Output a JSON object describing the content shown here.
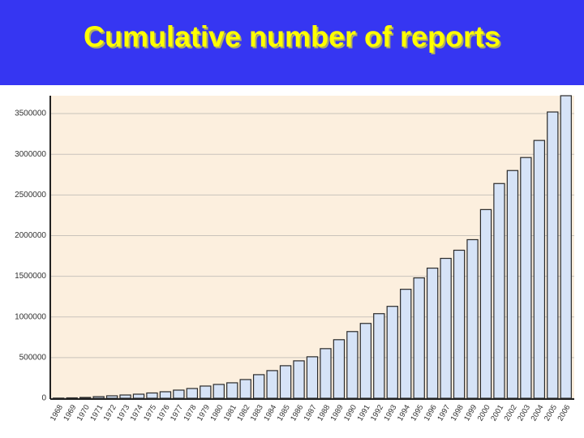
{
  "chart_data": {
    "type": "bar",
    "title": "Cumulative number of reports",
    "categories": [
      "1968",
      "1969",
      "1970",
      "1971",
      "1972",
      "1973",
      "1974",
      "1975",
      "1976",
      "1977",
      "1978",
      "1979",
      "1980",
      "1981",
      "1982",
      "1983",
      "1984",
      "1985",
      "1986",
      "1987",
      "1988",
      "1989",
      "1990",
      "1991",
      "1992",
      "1993",
      "1994",
      "1995",
      "1996",
      "1997",
      "1998",
      "1999",
      "2000",
      "2001",
      "2002",
      "2003",
      "2004",
      "2005",
      "2006"
    ],
    "values": [
      2000,
      5000,
      10000,
      20000,
      30000,
      40000,
      50000,
      65000,
      80000,
      100000,
      120000,
      150000,
      170000,
      190000,
      230000,
      290000,
      340000,
      400000,
      460000,
      510000,
      610000,
      720000,
      820000,
      920000,
      1040000,
      1130000,
      1340000,
      1480000,
      1600000,
      1720000,
      1820000,
      1950000,
      2320000,
      2640000,
      2800000,
      2960000,
      3170000,
      3520000,
      3720000
    ],
    "color": "#d6e3f7",
    "ylim": [
      0,
      3710000
    ],
    "yticks": [
      0,
      500000,
      1000000,
      1500000,
      2000000,
      2500000,
      3000000,
      3500000
    ],
    "grid": true
  }
}
